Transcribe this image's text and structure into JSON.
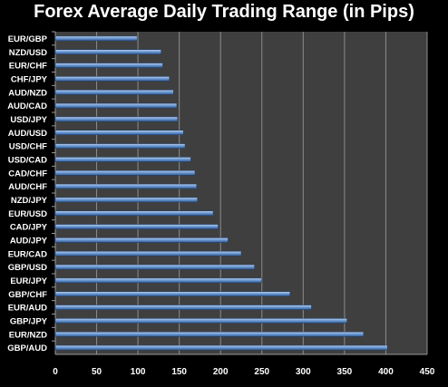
{
  "chart_data": {
    "type": "bar",
    "orientation": "horizontal",
    "title": "Forex Average Daily Trading Range (in Pips)",
    "xlabel": "",
    "ylabel": "",
    "xlim": [
      0,
      450
    ],
    "x_ticks": [
      "0",
      "50",
      "100",
      "150",
      "200",
      "250",
      "300",
      "350",
      "400",
      "450"
    ],
    "grid": true,
    "legend": "none",
    "colors": {
      "background": "#000000",
      "plot_area": "#3f3f3f",
      "bar": "#4f81bd",
      "bar_highlight": "#bcd3f0",
      "gridline": "#8c8c8c",
      "text": "#ffffff"
    },
    "categories": [
      "EUR/GBP",
      "NZD/USD",
      "EUR/CHF",
      "CHF/JPY",
      "AUD/NZD",
      "AUD/CAD",
      "USD/JPY",
      "AUD/USD",
      "USD/CHF",
      "USD/CAD",
      "CAD/CHF",
      "AUD/CHF",
      "NZD/JPY",
      "EUR/USD",
      "CAD/JPY",
      "AUD/JPY",
      "EUR/CAD",
      "GBP/USD",
      "EUR/JPY",
      "GBP/CHF",
      "EUR/AUD",
      "GBP/JPY",
      "EUR/NZD",
      "GBP/AUD"
    ],
    "values": [
      99,
      128,
      130,
      138,
      143,
      147,
      148,
      155,
      157,
      164,
      169,
      171,
      172,
      191,
      197,
      209,
      225,
      241,
      250,
      284,
      310,
      353,
      373,
      402
    ]
  }
}
